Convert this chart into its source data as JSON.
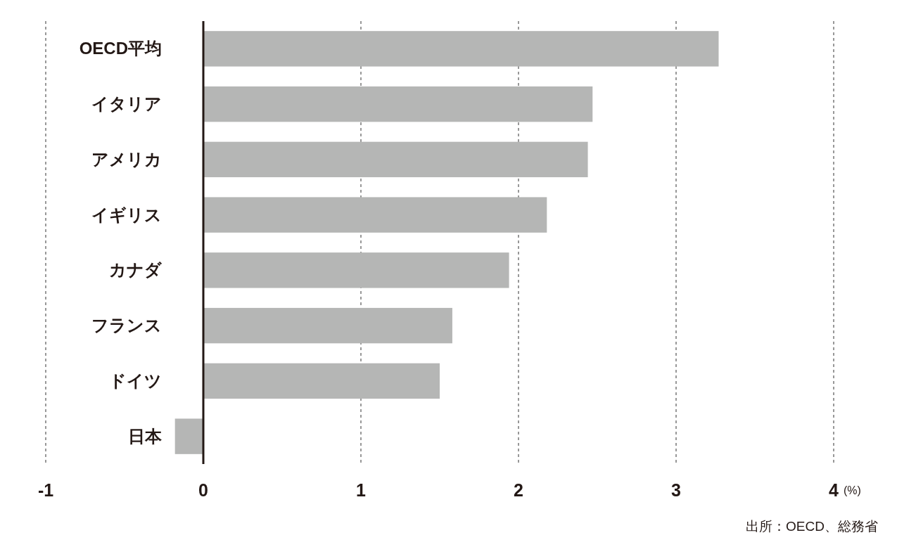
{
  "chart_data": {
    "type": "bar",
    "orientation": "horizontal",
    "categories": [
      "OECD平均",
      "イタリア",
      "アメリカ",
      "イギリス",
      "カナダ",
      "フランス",
      "ドイツ",
      "日本"
    ],
    "values": [
      3.27,
      2.47,
      2.44,
      2.18,
      1.94,
      1.58,
      1.5,
      -0.18
    ],
    "color": "#b5b6b5",
    "xlim": [
      -1,
      4
    ],
    "xticks": [
      {
        "value": -1,
        "label": "-1"
      },
      0,
      1,
      2,
      3,
      4
    ],
    "xlabel": "(%)",
    "grid": "x",
    "annotations": [
      "出所：OECD、総務省"
    ]
  }
}
